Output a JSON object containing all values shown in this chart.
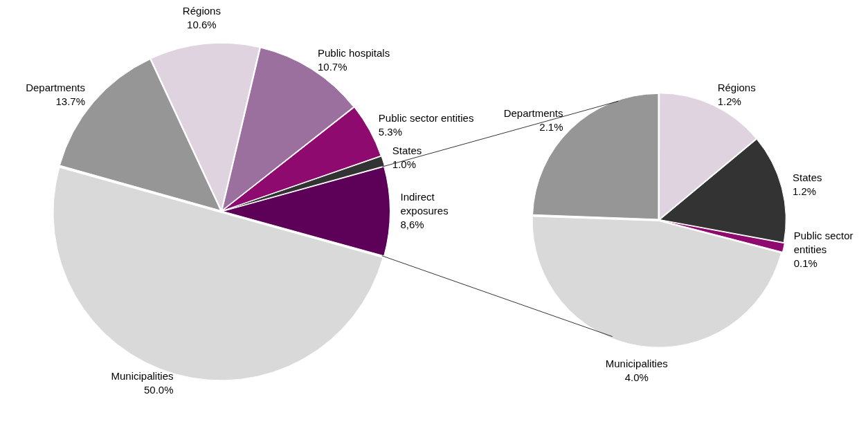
{
  "chart_data": [
    {
      "type": "pie",
      "categories": [
        "Departments",
        "Régions",
        "Public hospitals",
        "Public sector entities",
        "States",
        "Indirect exposures",
        "Municipalities"
      ],
      "values": [
        13.7,
        10.6,
        10.7,
        5.3,
        1.0,
        8.6,
        50.0
      ],
      "value_labels": [
        "13.7%",
        "10.6%",
        "10.7%",
        "5.3%",
        "1.0%",
        "8,6%",
        "50.0%"
      ],
      "colors": [
        "#969696",
        "#ded3df",
        "#9b6f9e",
        "#8e0a6e",
        "#333333",
        "#5c0058",
        "#d9d9d9"
      ],
      "legend": false
    },
    {
      "type": "pie",
      "categories": [
        "Régions",
        "States",
        "Public sector entities",
        "Municipalities",
        "Departments"
      ],
      "values": [
        1.2,
        1.2,
        0.1,
        4.0,
        2.1
      ],
      "value_labels": [
        "1.2%",
        "1.2%",
        "0.1%",
        "4.0%",
        "2.1%"
      ],
      "colors": [
        "#ded3df",
        "#333333",
        "#8e0a6e",
        "#d9d9d9",
        "#969696"
      ],
      "legend": false
    }
  ]
}
